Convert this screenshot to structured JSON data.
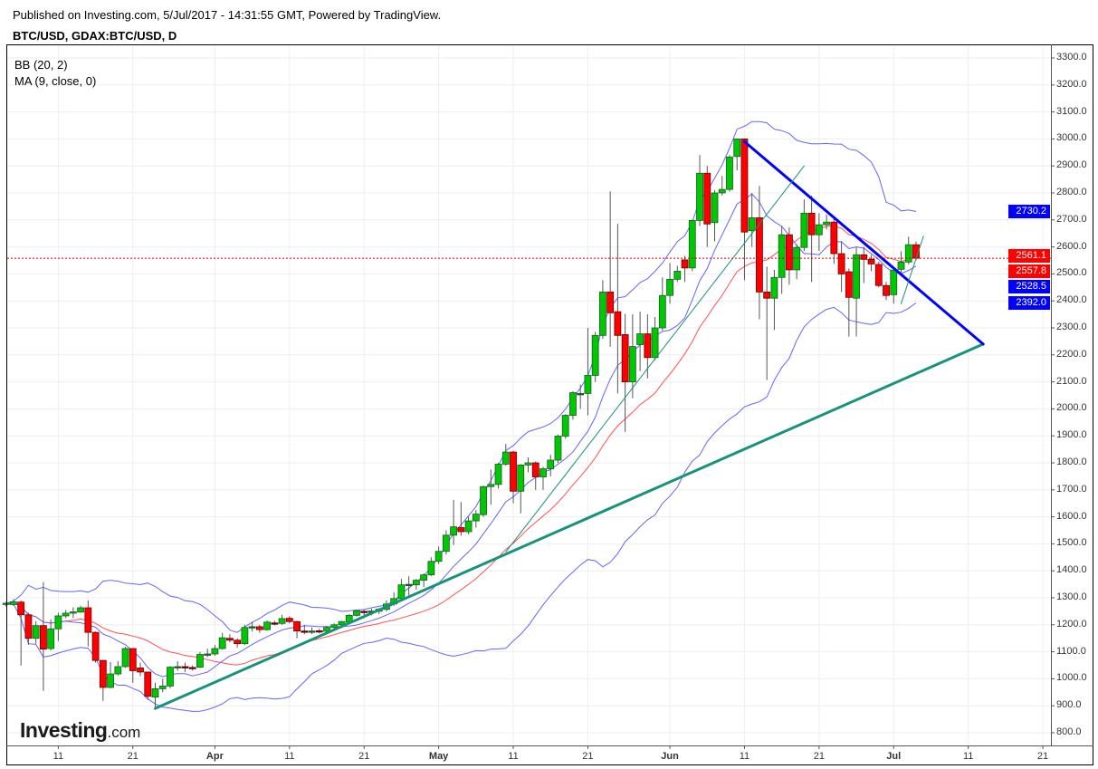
{
  "header": {
    "published": "Published on Investing.com, 5/Jul/2017 - 14:31:55 GMT, Powered by TradingView.",
    "symbol": "BTC/USD, GDAX:BTC/USD, D"
  },
  "legend": [
    "BB (20, 2)",
    "MA (9, close, 0)"
  ],
  "logo": {
    "brand": "Investing",
    "suffix": ".com"
  },
  "colors": {
    "up": "#00c800",
    "down": "#ff0000",
    "band": "#6464ff",
    "ma": "#ff5050",
    "trend_teal": "#17937a",
    "trend_blue": "#0000ff",
    "grid": "#eeeeee"
  },
  "chart_data": {
    "type": "candlestick",
    "title": "BTC/USD, GDAX:BTC/USD, D",
    "start_date": "2017-03-04",
    "columns": [
      "open",
      "high",
      "low",
      "close"
    ],
    "ohlc": [
      [
        1275,
        1285,
        1268,
        1280
      ],
      [
        1275,
        1295,
        1270,
        1285
      ],
      [
        1284,
        1290,
        1049,
        1237
      ],
      [
        1237,
        1245,
        1126,
        1150
      ],
      [
        1150,
        1213,
        1130,
        1197
      ],
      [
        1197,
        1358,
        955,
        1110
      ],
      [
        1112,
        1220,
        1105,
        1185
      ],
      [
        1185,
        1245,
        1140,
        1233
      ],
      [
        1233,
        1255,
        1225,
        1243
      ],
      [
        1243,
        1265,
        1225,
        1248
      ],
      [
        1247,
        1270,
        1245,
        1263
      ],
      [
        1263,
        1290,
        1120,
        1172
      ],
      [
        1172,
        1175,
        1060,
        1068
      ],
      [
        1068,
        1070,
        918,
        968
      ],
      [
        968,
        1062,
        965,
        1018
      ],
      [
        1018,
        1065,
        1012,
        1045
      ],
      [
        1045,
        1118,
        1040,
        1112
      ],
      [
        1112,
        1112,
        985,
        1030
      ],
      [
        1040,
        1060,
        1010,
        1025
      ],
      [
        1025,
        1025,
        922,
        935
      ],
      [
        932,
        985,
        890,
        963
      ],
      [
        963,
        1000,
        950,
        973
      ],
      [
        973,
        1047,
        965,
        1043
      ],
      [
        1043,
        1065,
        1030,
        1045
      ],
      [
        1045,
        1060,
        1025,
        1042
      ],
      [
        1042,
        1050,
        1030,
        1041
      ],
      [
        1043,
        1100,
        1040,
        1090
      ],
      [
        1090,
        1112,
        1080,
        1092
      ],
      [
        1092,
        1125,
        1085,
        1112
      ],
      [
        1112,
        1170,
        1108,
        1152
      ],
      [
        1150,
        1165,
        1135,
        1143
      ],
      [
        1143,
        1150,
        1115,
        1130
      ],
      [
        1130,
        1200,
        1125,
        1190
      ],
      [
        1190,
        1210,
        1175,
        1193
      ],
      [
        1193,
        1200,
        1170,
        1182
      ],
      [
        1182,
        1215,
        1178,
        1210
      ],
      [
        1207,
        1215,
        1198,
        1205
      ],
      [
        1205,
        1237,
        1200,
        1223
      ],
      [
        1224,
        1232,
        1205,
        1212
      ],
      [
        1212,
        1215,
        1150,
        1177
      ],
      [
        1177,
        1200,
        1165,
        1175
      ],
      [
        1175,
        1190,
        1165,
        1177
      ],
      [
        1178,
        1185,
        1168,
        1176
      ],
      [
        1176,
        1195,
        1170,
        1190
      ],
      [
        1190,
        1205,
        1185,
        1200
      ],
      [
        1200,
        1215,
        1195,
        1212
      ],
      [
        1210,
        1240,
        1205,
        1235
      ],
      [
        1235,
        1255,
        1230,
        1252
      ],
      [
        1250,
        1255,
        1225,
        1247
      ],
      [
        1249,
        1260,
        1235,
        1251
      ],
      [
        1250,
        1262,
        1240,
        1258
      ],
      [
        1257,
        1290,
        1250,
        1277
      ],
      [
        1277,
        1320,
        1270,
        1297
      ],
      [
        1297,
        1370,
        1290,
        1348
      ],
      [
        1350,
        1380,
        1300,
        1350
      ],
      [
        1348,
        1370,
        1330,
        1365
      ],
      [
        1365,
        1390,
        1340,
        1385
      ],
      [
        1385,
        1450,
        1380,
        1435
      ],
      [
        1435,
        1490,
        1425,
        1472
      ],
      [
        1472,
        1550,
        1460,
        1532
      ],
      [
        1532,
        1663,
        1495,
        1563
      ],
      [
        1560,
        1655,
        1530,
        1545
      ],
      [
        1545,
        1600,
        1535,
        1585
      ],
      [
        1585,
        1625,
        1560,
        1610
      ],
      [
        1608,
        1715,
        1600,
        1712
      ],
      [
        1712,
        1775,
        1645,
        1720
      ],
      [
        1720,
        1800,
        1705,
        1795
      ],
      [
        1795,
        1870,
        1790,
        1840
      ],
      [
        1840,
        1845,
        1650,
        1695
      ],
      [
        1695,
        1795,
        1613,
        1792
      ],
      [
        1792,
        1820,
        1765,
        1800
      ],
      [
        1800,
        1805,
        1700,
        1748
      ],
      [
        1748,
        1785,
        1700,
        1778
      ],
      [
        1778,
        1830,
        1750,
        1810
      ],
      [
        1810,
        1905,
        1800,
        1899
      ],
      [
        1899,
        1980,
        1890,
        1976
      ],
      [
        1976,
        2065,
        1960,
        2060
      ],
      [
        2057,
        2090,
        2000,
        2057
      ],
      [
        2057,
        2300,
        1976,
        2124
      ],
      [
        2124,
        2285,
        2100,
        2272
      ],
      [
        2272,
        2477,
        2260,
        2433
      ],
      [
        2433,
        2806,
        2230,
        2356
      ],
      [
        2360,
        2685,
        2057,
        2272
      ],
      [
        2275,
        2352,
        1915,
        2100
      ],
      [
        2100,
        2350,
        2040,
        2231
      ],
      [
        2238,
        2360,
        2140,
        2278
      ],
      [
        2278,
        2350,
        2113,
        2190
      ],
      [
        2190,
        2340,
        2180,
        2300
      ],
      [
        2300,
        2487,
        2290,
        2420
      ],
      [
        2420,
        2540,
        2390,
        2480
      ],
      [
        2480,
        2530,
        2470,
        2510
      ],
      [
        2552,
        2567,
        2470,
        2522
      ],
      [
        2522,
        2700,
        2510,
        2698
      ],
      [
        2698,
        2940,
        2678,
        2873
      ],
      [
        2873,
        2900,
        2600,
        2685
      ],
      [
        2690,
        2810,
        2620,
        2800
      ],
      [
        2800,
        2863,
        2790,
        2813
      ],
      [
        2813,
        2940,
        2805,
        2933
      ],
      [
        2935,
        3000,
        2883,
        3000
      ],
      [
        3000,
        3000,
        2477,
        2655
      ],
      [
        2660,
        2800,
        2600,
        2708
      ],
      [
        2708,
        2826,
        2332,
        2433
      ],
      [
        2433,
        2527,
        2107,
        2410
      ],
      [
        2410,
        2515,
        2292,
        2487
      ],
      [
        2487,
        2678,
        2426,
        2645
      ],
      [
        2645,
        2672,
        2460,
        2515
      ],
      [
        2515,
        2610,
        2480,
        2598
      ],
      [
        2598,
        2776,
        2585,
        2725
      ],
      [
        2725,
        2790,
        2470,
        2645
      ],
      [
        2645,
        2725,
        2585,
        2682
      ],
      [
        2682,
        2720,
        2665,
        2692
      ],
      [
        2692,
        2705,
        2537,
        2575
      ],
      [
        2575,
        2620,
        2433,
        2500
      ],
      [
        2508,
        2520,
        2268,
        2413
      ],
      [
        2410,
        2600,
        2268,
        2571
      ],
      [
        2571,
        2600,
        2466,
        2554
      ],
      [
        2554,
        2570,
        2510,
        2537
      ],
      [
        2535,
        2545,
        2450,
        2457
      ],
      [
        2457,
        2470,
        2403,
        2420
      ],
      [
        2423,
        2525,
        2390,
        2514
      ],
      [
        2517,
        2584,
        2505,
        2544
      ],
      [
        2544,
        2638,
        2535,
        2608
      ],
      [
        2608,
        2620,
        2550,
        2558
      ]
    ],
    "indicators": [
      {
        "name": "BB (20, 2)",
        "period": 20,
        "mult": 2
      },
      {
        "name": "MA (9, close, 0)",
        "period": 9
      }
    ],
    "trendlines": [
      {
        "color": "trend_teal",
        "weight": "thick",
        "from": {
          "day": 20,
          "price": 890
        },
        "to": {
          "day": 131,
          "price": 2240
        }
      },
      {
        "color": "trend_blue",
        "weight": "thick",
        "from": {
          "day": 99,
          "price": 2990
        },
        "to": {
          "day": 131,
          "price": 2240
        }
      },
      {
        "color": "trend_teal",
        "weight": "thin",
        "from": {
          "day": 67,
          "price": 1470
        },
        "to": {
          "day": 107,
          "price": 2900
        }
      },
      {
        "color": "trend_teal",
        "weight": "thin",
        "from": {
          "day": 120,
          "price": 2390
        },
        "to": {
          "day": 123,
          "price": 2640
        }
      }
    ],
    "last_price_line": 2557.8,
    "ylim": [
      800,
      3300
    ],
    "yticks": [
      "3300.0",
      "3200.0",
      "3100.0",
      "3000.0",
      "2900.0",
      "2800.0",
      "2700.0",
      "2600.0",
      "2500.0",
      "2400.0",
      "2300.0",
      "2200.0",
      "2100.0",
      "2000.0",
      "1900.0",
      "1800.0",
      "1700.0",
      "1600.0",
      "1500.0",
      "1400.0",
      "1300.0",
      "1200.0",
      "1100.0",
      "1000.0",
      "900.0",
      "800.0"
    ],
    "xticks": [
      {
        "label": "11",
        "day": 7,
        "bold": false
      },
      {
        "label": "21",
        "day": 17,
        "bold": false
      },
      {
        "label": "Apr",
        "day": 28,
        "bold": true
      },
      {
        "label": "11",
        "day": 38,
        "bold": false
      },
      {
        "label": "21",
        "day": 48,
        "bold": false
      },
      {
        "label": "May",
        "day": 58,
        "bold": true
      },
      {
        "label": "11",
        "day": 68,
        "bold": false
      },
      {
        "label": "21",
        "day": 78,
        "bold": false
      },
      {
        "label": "Jun",
        "day": 89,
        "bold": true
      },
      {
        "label": "11",
        "day": 99,
        "bold": false
      },
      {
        "label": "21",
        "day": 109,
        "bold": false
      },
      {
        "label": "Jul",
        "day": 119,
        "bold": true
      },
      {
        "label": "11",
        "day": 129,
        "bold": false
      },
      {
        "label": "21",
        "day": 139,
        "bold": false
      }
    ],
    "price_labels": [
      {
        "text": "2730.2",
        "price": 2730.2,
        "color": "#0000ff"
      },
      {
        "text": "2561.1",
        "price": 2568,
        "color": "#ff0000"
      },
      {
        "text": "2557.8",
        "price": 2553,
        "color": "#ff0000"
      },
      {
        "text": "2528.5",
        "price": 2521,
        "color": "#0000ff"
      },
      {
        "text": "2392.0",
        "price": 2392.0,
        "color": "#0000ff"
      }
    ]
  }
}
